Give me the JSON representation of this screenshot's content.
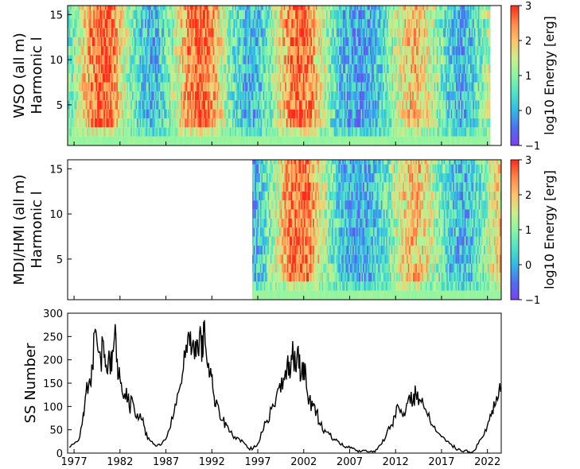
{
  "chart_data": [
    {
      "type": "heatmap",
      "ylabel_line1": "WSO (all m)",
      "ylabel_line2": "Harmonic l",
      "ylim": [
        0.5,
        16
      ],
      "yticks": [
        5,
        10,
        15
      ],
      "xlim": [
        1976.3,
        2023.5
      ],
      "data_range": [
        1976.3,
        2022.3
      ],
      "colorbar": {
        "label": "log10 Energy [erg]",
        "range": [
          -1,
          3
        ],
        "ticks": [
          -1,
          0,
          1,
          2,
          3
        ]
      }
    },
    {
      "type": "heatmap",
      "ylabel_line1": "MDI/HMI (all m)",
      "ylabel_line2": "Harmonic l",
      "ylim": [
        0.5,
        16
      ],
      "yticks": [
        5,
        10,
        15
      ],
      "xlim": [
        1976.3,
        2023.5
      ],
      "data_range": [
        1996.4,
        2023.5
      ],
      "colorbar": {
        "label": "log10 Energy [erg]",
        "range": [
          -1,
          3
        ],
        "ticks": [
          -1,
          0,
          1,
          2,
          3
        ]
      }
    },
    {
      "type": "line",
      "ylabel": "SS Number",
      "xlim": [
        1976.3,
        2023.5
      ],
      "ylim": [
        0,
        300
      ],
      "yticks": [
        0,
        50,
        100,
        150,
        200,
        250,
        300
      ],
      "xticks": [
        "1977",
        "1982",
        "1987",
        "1992",
        "1997",
        "2002",
        "2007",
        "2012",
        "2017",
        "2022"
      ],
      "series": [
        {
          "x": [
            1976.5,
            1977.0,
            1977.5,
            1978.0,
            1978.3,
            1978.7,
            1979.0,
            1979.3,
            1979.6,
            1979.9,
            1980.2,
            1980.5,
            1980.8,
            1981.1,
            1981.4,
            1981.7,
            1982.0,
            1982.3,
            1982.7,
            1983.0,
            1983.4,
            1983.8,
            1984.2,
            1984.6,
            1985.0,
            1985.5,
            1986.0,
            1986.5,
            1987.0,
            1987.5,
            1988.0,
            1988.5,
            1988.9,
            1989.3,
            1989.6,
            1989.9,
            1990.2,
            1990.5,
            1990.8,
            1991.0,
            1991.2,
            1991.5,
            1991.8,
            1992.1,
            1992.4,
            1992.8,
            1993.2,
            1993.6,
            1994.0,
            1994.5,
            1995.0,
            1995.5,
            1996.0,
            1996.5,
            1997.0,
            1997.5,
            1998.0,
            1998.5,
            1999.0,
            1999.4,
            1999.8,
            2000.2,
            2000.5,
            2000.8,
            2001.1,
            2001.4,
            2001.7,
            2002.0,
            2002.3,
            2002.6,
            2003.0,
            2003.4,
            2003.8,
            2004.3,
            2004.8,
            2005.3,
            2005.8,
            2006.3,
            2006.8,
            2007.3,
            2007.8,
            2008.3,
            2008.9,
            2009.5,
            2010.0,
            2010.5,
            2011.0,
            2011.5,
            2011.9,
            2012.3,
            2012.7,
            2013.1,
            2013.5,
            2013.9,
            2014.2,
            2014.6,
            2015.0,
            2015.5,
            2016.0,
            2016.5,
            2017.0,
            2017.5,
            2018.0,
            2018.5,
            2019.0,
            2019.5,
            2020.0,
            2020.5,
            2021.0,
            2021.5,
            2022.0,
            2022.4,
            2022.8,
            2023.2,
            2023.5
          ],
          "y": [
            12,
            20,
            28,
            85,
            130,
            160,
            185,
            265,
            220,
            200,
            240,
            190,
            220,
            175,
            250,
            200,
            160,
            125,
            140,
            100,
            110,
            75,
            85,
            60,
            30,
            25,
            15,
            18,
            30,
            55,
            105,
            140,
            180,
            215,
            230,
            235,
            240,
            215,
            260,
            205,
            285,
            190,
            170,
            140,
            100,
            90,
            70,
            60,
            45,
            35,
            30,
            22,
            10,
            10,
            20,
            45,
            70,
            95,
            120,
            150,
            160,
            195,
            160,
            240,
            180,
            230,
            160,
            195,
            140,
            115,
            100,
            90,
            60,
            50,
            40,
            30,
            25,
            15,
            12,
            10,
            6,
            4,
            3,
            2,
            8,
            20,
            40,
            60,
            80,
            100,
            85,
            90,
            125,
            110,
            130,
            115,
            105,
            80,
            60,
            45,
            35,
            25,
            20,
            10,
            8,
            5,
            3,
            5,
            20,
            35,
            60,
            80,
            100,
            120,
            140
          ]
        }
      ]
    }
  ]
}
